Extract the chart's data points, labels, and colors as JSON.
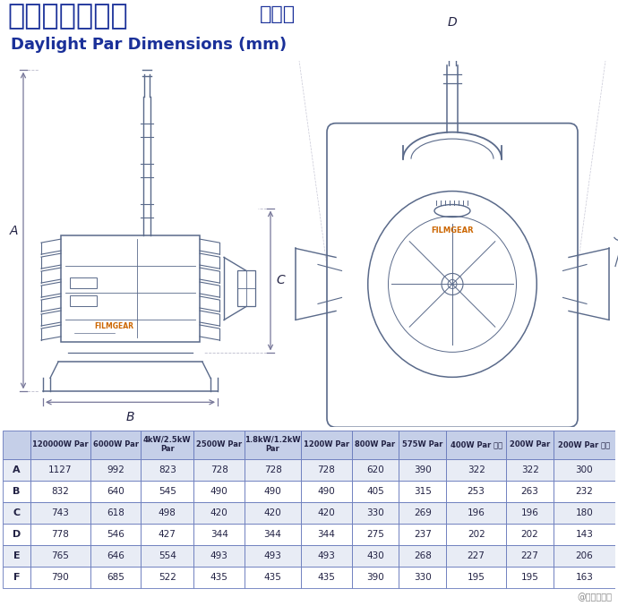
{
  "title_chinese": "高色温直射镝灯",
  "title_spec": "规格表",
  "title_sub": "Daylight Par Dimensions (mm)",
  "title_color": "#1a3099",
  "bg_color": "#ffffff",
  "table_header_bg": "#c5cfe8",
  "table_row_bg_alt": "#e8ecf5",
  "table_row_bg": "#ffffff",
  "table_border_color": "#6678bb",
  "table_text_color": "#222244",
  "columns": [
    "",
    "120000W Par",
    "6000W Par",
    "4kW/2.5kW\nPar",
    "2500W Par",
    "1.8kW/1.2kW\nPar",
    "1200W Par",
    "800W Par",
    "575W Par",
    "400W Par 小型",
    "200W Par",
    "200W Par 小型"
  ],
  "rows": [
    [
      "A",
      "1127",
      "992",
      "823",
      "728",
      "728",
      "728",
      "620",
      "390",
      "322",
      "322",
      "300"
    ],
    [
      "B",
      "832",
      "640",
      "545",
      "490",
      "490",
      "490",
      "405",
      "315",
      "253",
      "263",
      "232"
    ],
    [
      "C",
      "743",
      "618",
      "498",
      "420",
      "420",
      "420",
      "330",
      "269",
      "196",
      "196",
      "180"
    ],
    [
      "D",
      "778",
      "546",
      "427",
      "344",
      "344",
      "344",
      "275",
      "237",
      "202",
      "202",
      "143"
    ],
    [
      "E",
      "765",
      "646",
      "554",
      "493",
      "493",
      "493",
      "430",
      "268",
      "227",
      "227",
      "206"
    ],
    [
      "F",
      "790",
      "685",
      "522",
      "435",
      "435",
      "435",
      "390",
      "330",
      "195",
      "195",
      "163"
    ]
  ],
  "watermark": "@影视工业网",
  "arrow_color": "#777799",
  "line_color": "#5a6a8a",
  "filmgear_color": "#cc6600"
}
